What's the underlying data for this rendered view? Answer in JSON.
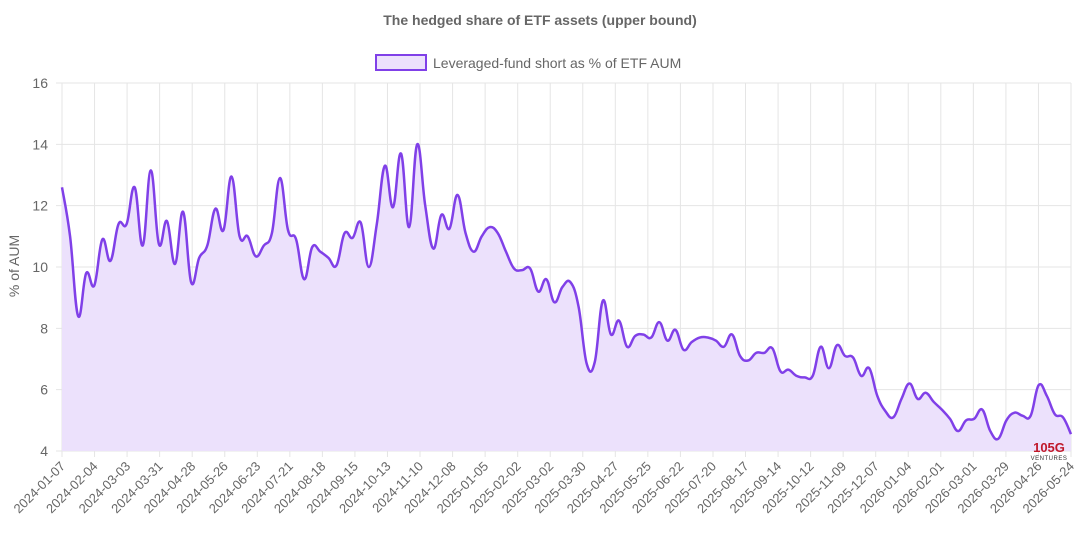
{
  "chart_data": {
    "type": "area",
    "title": "The hedged share of ETF assets (upper bound)",
    "xlabel": "",
    "ylabel": "% of AUM",
    "ylim": [
      4,
      16
    ],
    "yticks": [
      4,
      6,
      8,
      10,
      12,
      14,
      16
    ],
    "grid": true,
    "legend_position": "top",
    "colors": {
      "line": "#8040e8",
      "fill": "#ece1fc"
    },
    "x_tick_labels": [
      "2024-01-07",
      "2024-02-04",
      "2024-03-03",
      "2024-03-31",
      "2024-04-28",
      "2024-05-26",
      "2024-06-23",
      "2024-07-21",
      "2024-08-18",
      "2024-09-15",
      "2024-10-13",
      "2024-11-10",
      "2024-12-08",
      "2025-01-05",
      "2025-02-02",
      "2025-03-02",
      "2025-03-30",
      "2025-04-27",
      "2025-05-25",
      "2025-06-22",
      "2025-07-20",
      "2025-08-17",
      "2025-09-14",
      "2025-10-12",
      "2025-11-09",
      "2025-12-07",
      "2026-01-04",
      "2026-02-01",
      "2026-03-01",
      "2026-03-29",
      "2026-04-26",
      "2026-05-24"
    ],
    "series": [
      {
        "name": "Leveraged-fund short as % of ETF AUM",
        "values": [
          12.6,
          11.0,
          8.4,
          9.8,
          9.4,
          10.9,
          10.2,
          11.4,
          11.4,
          12.6,
          10.7,
          13.15,
          10.75,
          11.5,
          10.1,
          11.8,
          9.5,
          10.3,
          10.7,
          11.9,
          11.2,
          12.95,
          11.0,
          11.0,
          10.35,
          10.7,
          11.1,
          12.9,
          11.2,
          10.9,
          9.6,
          10.65,
          10.5,
          10.3,
          10.05,
          11.1,
          10.95,
          11.45,
          10.0,
          11.4,
          13.3,
          11.95,
          13.7,
          11.3,
          14.0,
          12.0,
          10.6,
          11.7,
          11.25,
          12.35,
          11.1,
          10.5,
          11.0,
          11.3,
          11.1,
          10.5,
          9.95,
          9.9,
          9.95,
          9.2,
          9.6,
          8.85,
          9.35,
          9.5,
          8.7,
          6.85,
          6.9,
          8.9,
          7.8,
          8.25,
          7.4,
          7.75,
          7.8,
          7.7,
          8.2,
          7.6,
          7.95,
          7.3,
          7.55,
          7.7,
          7.7,
          7.6,
          7.4,
          7.8,
          7.1,
          6.95,
          7.2,
          7.2,
          7.35,
          6.6,
          6.65,
          6.45,
          6.4,
          6.45,
          7.4,
          6.7,
          7.45,
          7.1,
          7.05,
          6.45,
          6.7,
          5.8,
          5.3,
          5.1,
          5.7,
          6.2,
          5.7,
          5.9,
          5.6,
          5.35,
          5.05,
          4.65,
          5.0,
          5.05,
          5.35,
          4.65,
          4.4,
          5.0,
          5.25,
          5.15,
          5.15,
          6.15,
          5.8,
          5.2,
          5.1,
          4.55
        ]
      }
    ]
  },
  "watermark": {
    "text": "105G",
    "subtext": "VENTURES"
  }
}
